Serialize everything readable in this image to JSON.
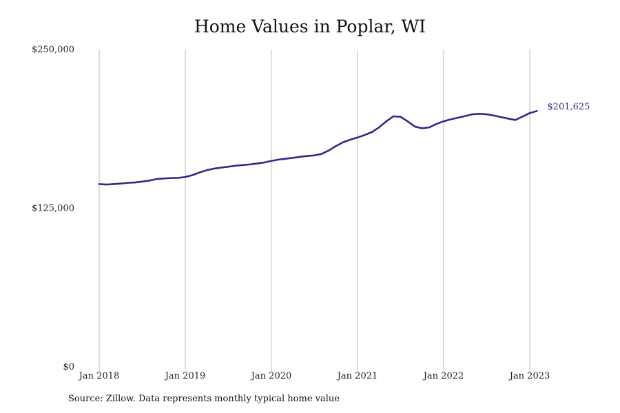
{
  "chart_data": {
    "type": "line",
    "title": "Home Values in Poplar, WI",
    "source": "Source: Zillow. Data represents monthly typical home value",
    "xlabel": "",
    "ylabel": "",
    "ylim": [
      0,
      250000
    ],
    "y_ticks": [
      {
        "value": 0,
        "label": "$0"
      },
      {
        "value": 125000,
        "label": "$125,000"
      },
      {
        "value": 250000,
        "label": "$250,000"
      }
    ],
    "x_ticks": [
      {
        "value": "2018-01",
        "label": "Jan 2018"
      },
      {
        "value": "2019-01",
        "label": "Jan 2019"
      },
      {
        "value": "2020-01",
        "label": "Jan 2020"
      },
      {
        "value": "2021-01",
        "label": "Jan 2021"
      },
      {
        "value": "2022-01",
        "label": "Jan 2022"
      },
      {
        "value": "2023-01",
        "label": "Jan 2023"
      }
    ],
    "grid": "vertical",
    "line_color": "#2e2a8a",
    "end_label": "$201,625",
    "series": [
      {
        "x": [
          "2018-01",
          "2018-02",
          "2018-03",
          "2018-04",
          "2018-05",
          "2018-06",
          "2018-07",
          "2018-08",
          "2018-09",
          "2018-10",
          "2018-11",
          "2018-12",
          "2019-01",
          "2019-02",
          "2019-03",
          "2019-04",
          "2019-05",
          "2019-06",
          "2019-07",
          "2019-08",
          "2019-09",
          "2019-10",
          "2019-11",
          "2019-12",
          "2020-01",
          "2020-02",
          "2020-03",
          "2020-04",
          "2020-05",
          "2020-06",
          "2020-07",
          "2020-08",
          "2020-09",
          "2020-10",
          "2020-11",
          "2020-12",
          "2021-01",
          "2021-02",
          "2021-03",
          "2021-04",
          "2021-05",
          "2021-06",
          "2021-07",
          "2021-08",
          "2021-09",
          "2021-10",
          "2021-11",
          "2021-12",
          "2022-01",
          "2022-02",
          "2022-03",
          "2022-04",
          "2022-05",
          "2022-06",
          "2022-07",
          "2022-08",
          "2022-09",
          "2022-10",
          "2022-11",
          "2022-12",
          "2023-01",
          "2023-02"
        ],
        "values": [
          144000,
          143700,
          144000,
          144400,
          145000,
          145300,
          146000,
          146800,
          148000,
          148400,
          148800,
          148900,
          149600,
          151100,
          153200,
          155000,
          156200,
          157000,
          157700,
          158500,
          159000,
          159500,
          160200,
          161000,
          162300,
          163300,
          164000,
          164700,
          165500,
          166200,
          166600,
          167800,
          170500,
          174000,
          177000,
          179000,
          180700,
          182700,
          185000,
          188700,
          193400,
          197400,
          197000,
          193400,
          189300,
          188000,
          188700,
          191400,
          193500,
          195000,
          196300,
          197600,
          199000,
          199400,
          199000,
          198000,
          196800,
          195600,
          194500,
          197200,
          200000,
          201625
        ]
      }
    ]
  }
}
